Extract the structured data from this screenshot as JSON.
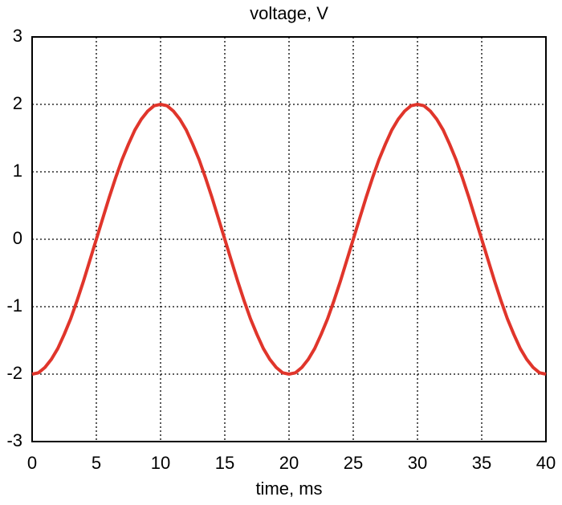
{
  "chart_data": {
    "type": "line",
    "title": "voltage, V",
    "xlabel": "time, ms",
    "x": [
      0,
      0.5,
      1,
      1.5,
      2,
      2.5,
      3,
      3.5,
      4,
      4.5,
      5,
      5.5,
      6,
      6.5,
      7,
      7.5,
      8,
      8.5,
      9,
      9.5,
      10,
      10.5,
      11,
      11.5,
      12,
      12.5,
      13,
      13.5,
      14,
      14.5,
      15,
      15.5,
      16,
      16.5,
      17,
      17.5,
      18,
      18.5,
      19,
      19.5,
      20,
      20.5,
      21,
      21.5,
      22,
      22.5,
      23,
      23.5,
      24,
      24.5,
      25,
      25.5,
      26,
      26.5,
      27,
      27.5,
      28,
      28.5,
      29,
      29.5,
      30,
      30.5,
      31,
      31.5,
      32,
      32.5,
      33,
      33.5,
      34,
      34.5,
      35,
      35.5,
      36,
      36.5,
      37,
      37.5,
      38,
      38.5,
      39,
      39.5,
      40
    ],
    "values": [
      -2,
      -1.98,
      -1.9,
      -1.78,
      -1.62,
      -1.41,
      -1.18,
      -0.91,
      -0.62,
      -0.31,
      0,
      0.31,
      0.62,
      0.91,
      1.18,
      1.41,
      1.62,
      1.78,
      1.9,
      1.98,
      2,
      1.98,
      1.9,
      1.78,
      1.62,
      1.41,
      1.18,
      0.91,
      0.62,
      0.31,
      0,
      -0.31,
      -0.62,
      -0.91,
      -1.18,
      -1.41,
      -1.62,
      -1.78,
      -1.9,
      -1.98,
      -2,
      -1.98,
      -1.9,
      -1.78,
      -1.62,
      -1.41,
      -1.18,
      -0.91,
      -0.62,
      -0.31,
      0,
      0.31,
      0.62,
      0.91,
      1.18,
      1.41,
      1.62,
      1.78,
      1.9,
      1.98,
      2,
      1.98,
      1.9,
      1.78,
      1.62,
      1.41,
      1.18,
      0.91,
      0.62,
      0.31,
      0,
      -0.31,
      -0.62,
      -0.91,
      -1.18,
      -1.41,
      -1.62,
      -1.78,
      -1.9,
      -1.98,
      -2
    ],
    "color": "#e0352b",
    "xlim": [
      0,
      40
    ],
    "xticks": [
      0,
      5,
      10,
      15,
      20,
      25,
      30,
      35,
      40
    ],
    "ylim": [
      -3,
      3
    ],
    "yticks": [
      -3,
      -2,
      -1,
      0,
      1,
      2,
      3
    ],
    "grid": true
  }
}
